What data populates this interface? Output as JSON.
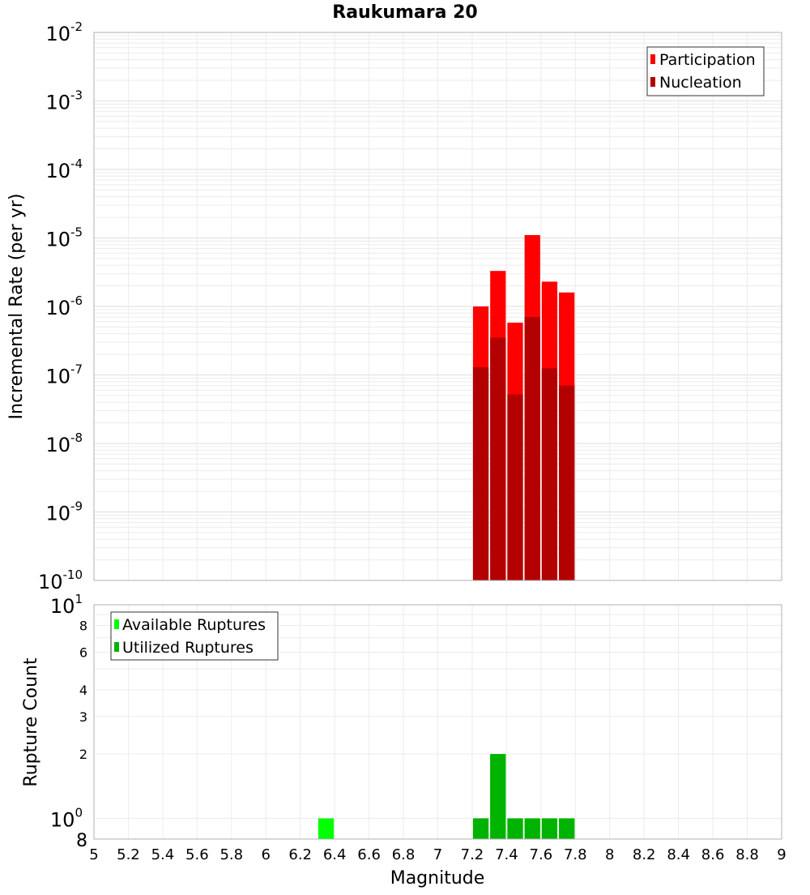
{
  "chart_data": [
    {
      "type": "bar",
      "title": "Raukumara 20",
      "ylabel": "Incremental Rate (per yr)",
      "xlabel": "",
      "y_scale": "log",
      "ylim": [
        1e-10,
        0.01
      ],
      "xlim": [
        5,
        9
      ],
      "y_tick_labels": [
        {
          "base": "10",
          "exp": "-10"
        },
        {
          "base": "10",
          "exp": "-9"
        },
        {
          "base": "10",
          "exp": "-8"
        },
        {
          "base": "10",
          "exp": "-7"
        },
        {
          "base": "10",
          "exp": "-6"
        },
        {
          "base": "10",
          "exp": "-5"
        },
        {
          "base": "10",
          "exp": "-4"
        },
        {
          "base": "10",
          "exp": "-3"
        },
        {
          "base": "10",
          "exp": "-2"
        }
      ],
      "grid": true,
      "legend_position": "top-right",
      "x": [
        7.25,
        7.35,
        7.45,
        7.55,
        7.65,
        7.75
      ],
      "series": [
        {
          "name": "Participation",
          "color": "#ff0000",
          "values": [
            1e-06,
            3.3e-06,
            5.8e-07,
            1.1e-05,
            2.3e-06,
            1.6e-06
          ]
        },
        {
          "name": "Nucleation",
          "color": "#b30000",
          "values": [
            1.3e-07,
            3.5e-07,
            5.2e-08,
            7e-07,
            1.25e-07,
            7e-08
          ]
        }
      ]
    },
    {
      "type": "bar",
      "ylabel": "Rupture Count",
      "xlabel": "Magnitude",
      "y_scale": "log",
      "ylim": [
        0.8,
        10
      ],
      "xlim": [
        5,
        9
      ],
      "x_ticks": [
        "5",
        "5.2",
        "5.4",
        "5.6",
        "5.8",
        "6",
        "6.2",
        "6.4",
        "6.6",
        "6.8",
        "7",
        "7.2",
        "7.4",
        "7.6",
        "7.8",
        "8",
        "8.2",
        "8.4",
        "8.6",
        "8.8",
        "9"
      ],
      "y_tick_labels": [
        {
          "label": "8"
        },
        {
          "base": "10",
          "exp": "0"
        },
        {
          "label": "2"
        },
        {
          "label": "3"
        },
        {
          "label": "4"
        },
        {
          "label": "6"
        },
        {
          "label": "8"
        },
        {
          "base": "10",
          "exp": "1"
        }
      ],
      "grid": true,
      "legend_position": "top-left",
      "series": [
        {
          "name": "Available Ruptures",
          "color": "#00ff00",
          "x": [
            6.35,
            7.25,
            7.35,
            7.45,
            7.55,
            7.65,
            7.75
          ],
          "values": [
            1,
            1,
            2,
            1,
            1,
            1,
            1
          ]
        },
        {
          "name": "Utilized Ruptures",
          "color": "#00b300",
          "x": [
            7.25,
            7.35,
            7.45,
            7.55,
            7.65,
            7.75
          ],
          "values": [
            1,
            2,
            1,
            1,
            1,
            1
          ]
        }
      ]
    }
  ]
}
